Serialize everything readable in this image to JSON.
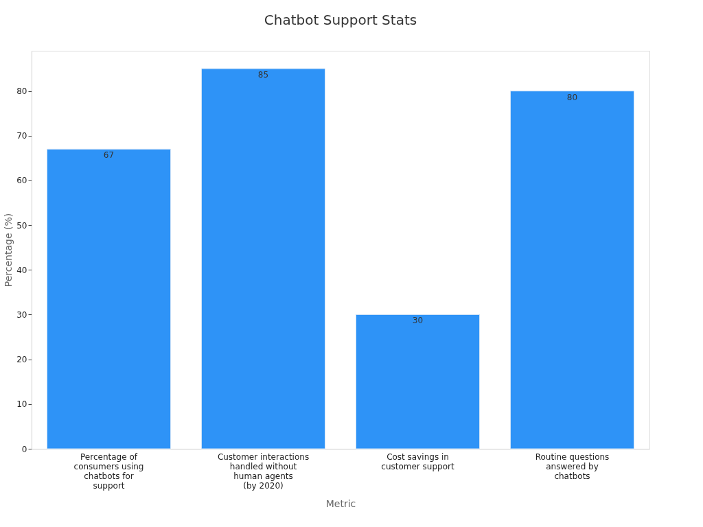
{
  "chart_data": {
    "type": "bar",
    "title": "Chatbot Support Stats",
    "xlabel": "Metric",
    "ylabel": "Percentage (%)",
    "categories": [
      "Percentage of\nconsumers using\nchatbots for\nsupport",
      "Customer interactions\nhandled without\nhuman agents\n(by 2020)",
      "Cost savings in\ncustomer support",
      "Routine questions\nanswered by\nchatbots"
    ],
    "values": [
      67,
      85,
      30,
      80
    ],
    "color": "#2e93f7",
    "ylim": [
      0,
      89
    ],
    "yticks": [
      0,
      10,
      20,
      30,
      40,
      50,
      60,
      70,
      80
    ],
    "data_labels": true
  }
}
